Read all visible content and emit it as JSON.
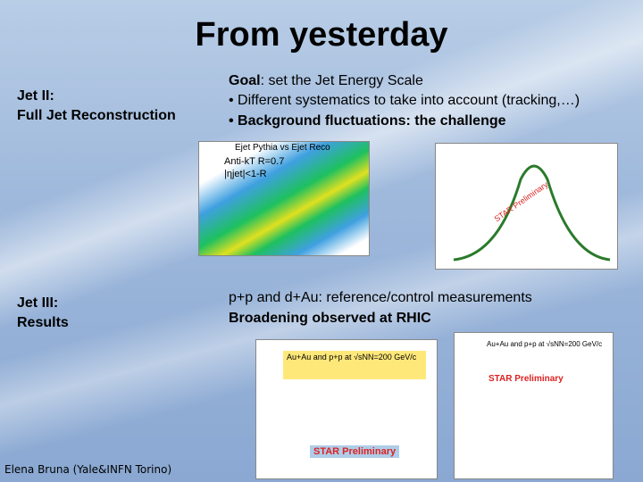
{
  "title": "From yesterday",
  "sections": [
    {
      "label": [
        "Jet II:",
        "Full Jet Reconstruction"
      ],
      "goal": {
        "head": "Goal",
        "rest": ": set the Jet Energy Scale"
      },
      "bullets": [
        "• Different systematics to take into account (tracking,…)",
        "• Background fluctuations: the challenge"
      ],
      "figures": [
        {
          "labels": [
            "Ejet Pythia vs Ejet Reco",
            "Anti-kT R=0.7",
            "|ηjet|<1-R"
          ]
        },
        {
          "labels": [
            "STAR Preliminary"
          ]
        }
      ]
    },
    {
      "label": [
        "Jet III:",
        "Results"
      ],
      "lines": [
        "p+p and d+Au: reference/control measurements",
        "Broadening observed at RHIC"
      ],
      "figures": [
        {
          "labels": [
            "Au+Au and p+p at √sNN=200 GeV/c",
            "STAR Preliminary"
          ]
        },
        {
          "labels": [
            "Au+Au and p+p at √sNN=200 GeV/c",
            "STAR Preliminary"
          ]
        }
      ]
    }
  ],
  "footer": "Elena Bruna (Yale&INFN Torino)"
}
